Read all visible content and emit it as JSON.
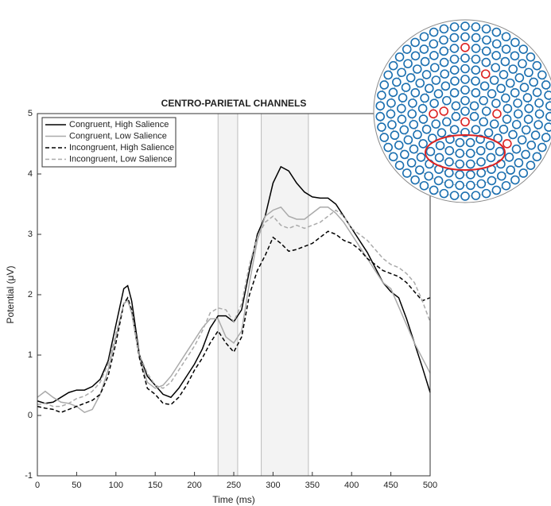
{
  "chart_data": {
    "type": "line",
    "title": "CENTRO-PARIETAL CHANNELS",
    "x_label": "Time (ms)",
    "y_label": "Potential (μV)",
    "x": [
      0,
      10,
      20,
      30,
      40,
      50,
      60,
      70,
      80,
      90,
      100,
      110,
      115,
      120,
      130,
      140,
      150,
      160,
      170,
      180,
      190,
      200,
      210,
      220,
      230,
      240,
      250,
      260,
      270,
      280,
      290,
      300,
      310,
      320,
      330,
      340,
      350,
      360,
      370,
      380,
      390,
      400,
      410,
      420,
      430,
      440,
      450,
      460,
      470,
      480,
      490,
      500
    ],
    "series": [
      {
        "name": "Congruent, High Salience",
        "color": "#000000",
        "dash": false,
        "values": [
          0.24,
          0.2,
          0.22,
          0.3,
          0.38,
          0.42,
          0.42,
          0.48,
          0.6,
          0.9,
          1.5,
          2.1,
          2.15,
          1.9,
          1.0,
          0.65,
          0.5,
          0.35,
          0.3,
          0.45,
          0.65,
          0.85,
          1.1,
          1.45,
          1.65,
          1.65,
          1.55,
          1.75,
          2.4,
          3.0,
          3.3,
          3.85,
          4.12,
          4.05,
          3.85,
          3.7,
          3.62,
          3.6,
          3.6,
          3.5,
          3.3,
          3.1,
          2.9,
          2.7,
          2.45,
          2.2,
          2.05,
          1.95,
          1.6,
          1.2,
          0.8,
          0.38
        ]
      },
      {
        "name": "Congruent, Low Salience",
        "color": "#aaaaaa",
        "dash": false,
        "values": [
          0.3,
          0.4,
          0.3,
          0.22,
          0.2,
          0.15,
          0.05,
          0.1,
          0.35,
          0.75,
          1.3,
          1.85,
          1.92,
          1.7,
          0.95,
          0.55,
          0.45,
          0.5,
          0.65,
          0.85,
          1.05,
          1.25,
          1.45,
          1.6,
          1.6,
          1.3,
          1.2,
          1.4,
          2.2,
          2.9,
          3.3,
          3.4,
          3.45,
          3.3,
          3.25,
          3.25,
          3.35,
          3.45,
          3.45,
          3.35,
          3.2,
          3.0,
          2.8,
          2.6,
          2.4,
          2.2,
          2.1,
          1.8,
          1.5,
          1.2,
          0.95,
          0.7
        ]
      },
      {
        "name": "Incongruent, High Salience",
        "color": "#000000",
        "dash": true,
        "values": [
          0.15,
          0.12,
          0.1,
          0.05,
          0.1,
          0.15,
          0.2,
          0.25,
          0.35,
          0.65,
          1.2,
          1.85,
          1.95,
          1.75,
          0.95,
          0.45,
          0.35,
          0.2,
          0.18,
          0.3,
          0.5,
          0.75,
          0.95,
          1.2,
          1.4,
          1.2,
          1.05,
          1.3,
          2.0,
          2.4,
          2.65,
          2.95,
          2.85,
          2.72,
          2.75,
          2.8,
          2.85,
          2.95,
          3.05,
          3.0,
          2.9,
          2.85,
          2.75,
          2.6,
          2.5,
          2.4,
          2.35,
          2.3,
          2.2,
          2.05,
          1.9,
          1.95
        ]
      },
      {
        "name": "Incongruent, Low Salience",
        "color": "#aaaaaa",
        "dash": true,
        "values": [
          0.18,
          0.2,
          0.15,
          0.15,
          0.2,
          0.28,
          0.32,
          0.4,
          0.55,
          0.85,
          1.35,
          1.85,
          1.9,
          1.7,
          1.0,
          0.7,
          0.5,
          0.45,
          0.55,
          0.75,
          0.95,
          1.15,
          1.4,
          1.7,
          1.78,
          1.75,
          1.55,
          1.85,
          2.5,
          2.95,
          3.2,
          3.3,
          3.15,
          3.1,
          3.15,
          3.1,
          3.15,
          3.2,
          3.3,
          3.4,
          3.3,
          3.1,
          3.0,
          2.9,
          2.75,
          2.6,
          2.5,
          2.45,
          2.35,
          2.2,
          1.9,
          1.55
        ]
      }
    ],
    "shaded_regions": [
      [
        230,
        255
      ],
      [
        285,
        345
      ]
    ],
    "xlim": [
      0,
      500
    ],
    "xticks": [
      0,
      50,
      100,
      150,
      200,
      250,
      300,
      350,
      400,
      450,
      500
    ],
    "ylim": [
      -1,
      5
    ],
    "yticks": [
      -1,
      0,
      1,
      2,
      3,
      4,
      5
    ],
    "legend": "upper left"
  }
}
